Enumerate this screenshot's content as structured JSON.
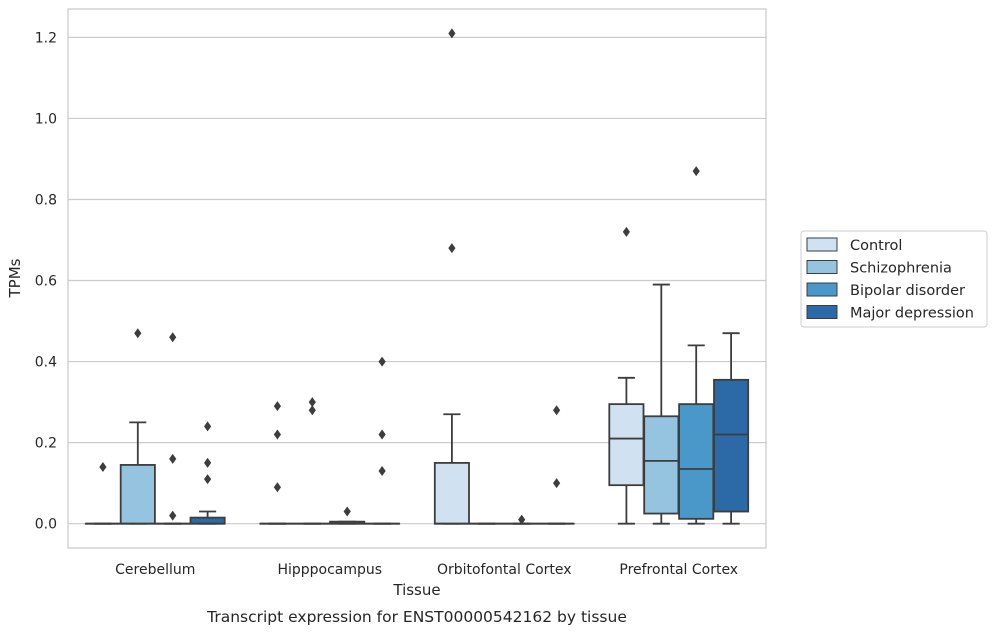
{
  "chart_data": {
    "type": "box",
    "xlabel": "Tissue",
    "ylabel": "TPMs",
    "caption": "Transcript expression for ENST00000542162 by tissue",
    "categories": [
      "Cerebellum",
      "Hipppocampus",
      "Orbitofontal Cortex",
      "Prefrontal Cortex"
    ],
    "ylim": [
      -0.06,
      1.27
    ],
    "yticks": [
      0.0,
      0.2,
      0.4,
      0.6,
      0.8,
      1.0,
      1.2
    ],
    "ytick_labels": [
      "0.0",
      "0.2",
      "0.4",
      "0.6",
      "0.8",
      "1.0",
      "1.2"
    ],
    "grid": true,
    "legend_position": "right",
    "series": [
      {
        "name": "Control",
        "color": "#d0e1f2",
        "boxes": [
          {
            "min": 0,
            "q1": 0,
            "median": 0,
            "q3": 0,
            "max": 0,
            "outliers": [
              0.14
            ]
          },
          {
            "min": 0,
            "q1": 0,
            "median": 0,
            "q3": 0,
            "max": 0,
            "outliers": [
              0.22,
              0.09,
              0.29
            ]
          },
          {
            "min": 0,
            "q1": 0,
            "median": 0,
            "q3": 0.15,
            "max": 0.27,
            "outliers": [
              1.21,
              0.68
            ]
          },
          {
            "min": 0,
            "q1": 0.095,
            "median": 0.21,
            "q3": 0.295,
            "max": 0.36,
            "outliers": [
              0.72
            ]
          }
        ]
      },
      {
        "name": "Schizophrenia",
        "color": "#94c4df",
        "boxes": [
          {
            "min": 0,
            "q1": 0,
            "median": 0,
            "q3": 0.145,
            "max": 0.25,
            "outliers": [
              0.47
            ]
          },
          {
            "min": 0,
            "q1": 0,
            "median": 0,
            "q3": 0,
            "max": 0,
            "outliers": [
              0.3,
              0.28
            ]
          },
          {
            "min": 0,
            "q1": 0,
            "median": 0,
            "q3": 0,
            "max": 0,
            "outliers": []
          },
          {
            "min": 0,
            "q1": 0.025,
            "median": 0.155,
            "q3": 0.265,
            "max": 0.59,
            "outliers": []
          }
        ]
      },
      {
        "name": "Bipolar disorder",
        "color": "#4a98c9",
        "boxes": [
          {
            "min": 0,
            "q1": 0,
            "median": 0,
            "q3": 0,
            "max": 0,
            "outliers": [
              0.46,
              0.16,
              0.02
            ]
          },
          {
            "min": 0,
            "q1": 0,
            "median": 0,
            "q3": 0.005,
            "max": 0.005,
            "outliers": [
              0.03
            ]
          },
          {
            "min": 0,
            "q1": 0,
            "median": 0,
            "q3": 0,
            "max": 0,
            "outliers": [
              0.01
            ]
          },
          {
            "min": 0,
            "q1": 0.012,
            "median": 0.135,
            "q3": 0.295,
            "max": 0.44,
            "outliers": [
              0.87
            ]
          }
        ]
      },
      {
        "name": "Major depression",
        "color": "#2b6aa6",
        "boxes": [
          {
            "min": 0,
            "q1": 0,
            "median": 0,
            "q3": 0.015,
            "max": 0.03,
            "outliers": [
              0.24,
              0.15,
              0.11
            ]
          },
          {
            "min": 0,
            "q1": 0,
            "median": 0,
            "q3": 0,
            "max": 0,
            "outliers": [
              0.4,
              0.22,
              0.13
            ]
          },
          {
            "min": 0,
            "q1": 0,
            "median": 0,
            "q3": 0,
            "max": 0,
            "outliers": [
              0.28,
              0.1
            ]
          },
          {
            "min": 0,
            "q1": 0.03,
            "median": 0.22,
            "q3": 0.355,
            "max": 0.47,
            "outliers": []
          }
        ]
      }
    ]
  }
}
